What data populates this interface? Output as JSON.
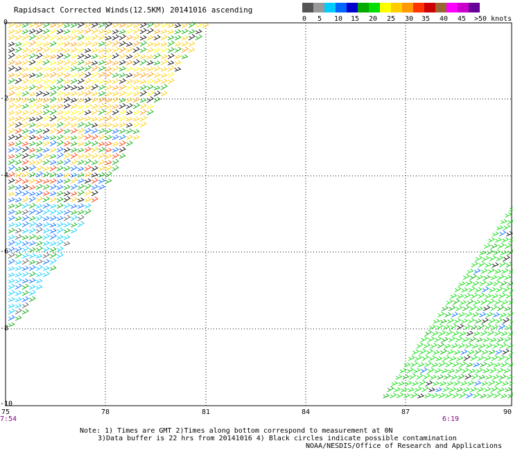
{
  "title": "Rapidsact Corrected Winds(12.5KM) 20141016 ascending",
  "legend": {
    "colors": [
      "#555555",
      "#999999",
      "#00ccff",
      "#0066ff",
      "#0000cc",
      "#00aa00",
      "#00dd00",
      "#ffff00",
      "#ffcc00",
      "#ff9900",
      "#ff3300",
      "#cc0000",
      "#996633",
      "#ff00ff",
      "#cc00cc",
      "#660099"
    ],
    "labels": [
      "0",
      "5",
      "10",
      "15",
      "20",
      "25",
      "30",
      "35",
      "40",
      "45",
      ">50 knots"
    ]
  },
  "axes": {
    "x_ticks": [
      "75",
      "78",
      "81",
      "84",
      "87",
      "90"
    ],
    "y_ticks": [
      "0",
      "-2",
      "-4",
      "-6",
      "-8",
      "-10"
    ]
  },
  "times": {
    "left": "7:54",
    "right": "6:19"
  },
  "notes": {
    "line1": "Note: 1) Times are GMT 2)Times along bottom correspond to measurement at 0N",
    "line2": "3)Data buffer is 22 hrs from 20141016 4) Black circles indicate possible contamination",
    "credit": "NOAA/NESDIS/Office of Research and Applications"
  }
}
